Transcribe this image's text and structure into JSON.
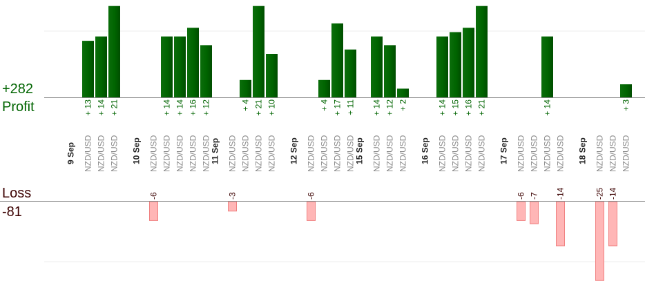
{
  "summary": {
    "profit_total": "+282",
    "profit_label": "Profit",
    "loss_label": "Loss",
    "loss_total": "-81"
  },
  "colors": {
    "profit_bar": "#006400",
    "profit_text": "#006400",
    "loss_fill": "#ffb6b6",
    "loss_stroke": "#f08080",
    "loss_text": "#3b0000",
    "baseline": "#888888",
    "grid": "#eeeeee"
  },
  "chart_data": {
    "type": "bar",
    "pair": "NZD/USD",
    "scale_note": "profit bars clipped at top of image",
    "dates": [
      {
        "label": "9 Sep",
        "slot": 0
      },
      {
        "label": "10 Sep",
        "slot": 5
      },
      {
        "label": "11 Sep",
        "slot": 11
      },
      {
        "label": "12 Sep",
        "slot": 17
      },
      {
        "label": "15 Sep",
        "slot": 22
      },
      {
        "label": "16 Sep",
        "slot": 27
      },
      {
        "label": "17 Sep",
        "slot": 33
      },
      {
        "label": "18 Sep",
        "slot": 39
      }
    ],
    "trades": [
      {
        "slot": 1,
        "value": 13
      },
      {
        "slot": 2,
        "value": 14
      },
      {
        "slot": 3,
        "value": 21
      },
      {
        "slot": 6,
        "value": -6
      },
      {
        "slot": 7,
        "value": 14
      },
      {
        "slot": 8,
        "value": 14
      },
      {
        "slot": 9,
        "value": 16
      },
      {
        "slot": 10,
        "value": 12
      },
      {
        "slot": 12,
        "value": -3
      },
      {
        "slot": 13,
        "value": 4
      },
      {
        "slot": 14,
        "value": 21
      },
      {
        "slot": 15,
        "value": 10
      },
      {
        "slot": 18,
        "value": -6
      },
      {
        "slot": 19,
        "value": 4
      },
      {
        "slot": 20,
        "value": 17
      },
      {
        "slot": 21,
        "value": 11
      },
      {
        "slot": 23,
        "value": 14
      },
      {
        "slot": 24,
        "value": 12
      },
      {
        "slot": 25,
        "value": 2
      },
      {
        "slot": 28,
        "value": 14
      },
      {
        "slot": 29,
        "value": 15
      },
      {
        "slot": 30,
        "value": 16
      },
      {
        "slot": 31,
        "value": 21
      },
      {
        "slot": 34,
        "value": -6
      },
      {
        "slot": 35,
        "value": -7
      },
      {
        "slot": 36,
        "value": 14
      },
      {
        "slot": 37,
        "value": -14
      },
      {
        "slot": 40,
        "value": -25
      },
      {
        "slot": 41,
        "value": -14
      },
      {
        "slot": 42,
        "value": 3
      }
    ]
  }
}
